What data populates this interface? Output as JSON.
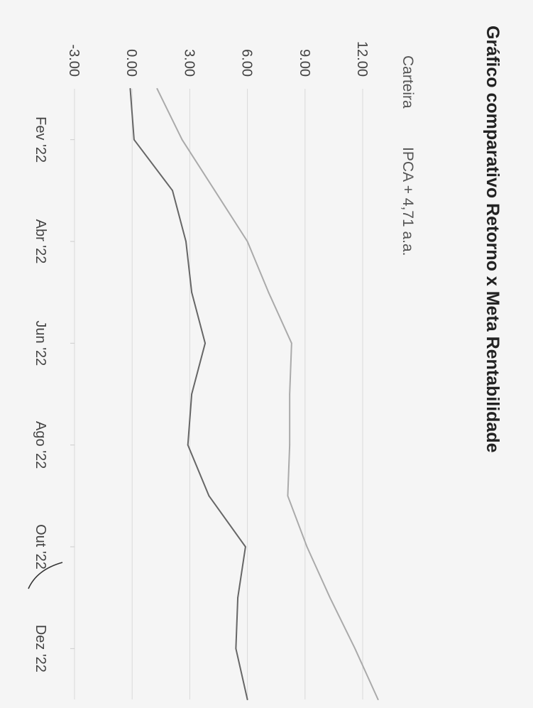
{
  "chart_data": {
    "type": "line",
    "title": "Gráfico comparativo Retorno x Meta Rentabilidade",
    "legend": {
      "placement": "top",
      "entries": [
        "Carteira",
        "IPCA + 4,71 a.a."
      ]
    },
    "x_tick_labels": [
      "Fev '22",
      "Abr '22",
      "Jun '22",
      "Ago '22",
      "Out '22",
      "Dez '22"
    ],
    "y_tick_labels": [
      "-3.00",
      "0.00",
      "3.00",
      "6.00",
      "9.00",
      "12.00"
    ],
    "ylim": [
      -3,
      12
    ],
    "grid": true,
    "x": [
      "Jan '22",
      "Fev '22",
      "Mar '22",
      "Abr '22",
      "Mai '22",
      "Jun '22",
      "Jul '22",
      "Ago '22",
      "Set '22",
      "Out '22",
      "Nov '22",
      "Dez '22",
      "Jan '23"
    ],
    "series": [
      {
        "name": "Carteira",
        "color": "#666666",
        "values": [
          -0.1,
          0.1,
          2.1,
          2.8,
          3.1,
          3.8,
          3.1,
          2.9,
          4.0,
          5.9,
          5.5,
          5.4,
          6.0
        ]
      },
      {
        "name": "IPCA + 4,71 a.a.",
        "color": "#aaaaaa",
        "values": [
          1.3,
          2.6,
          4.3,
          6.0,
          7.1,
          8.3,
          8.2,
          8.2,
          8.1,
          9.1,
          10.3,
          11.6,
          12.8
        ]
      }
    ]
  }
}
